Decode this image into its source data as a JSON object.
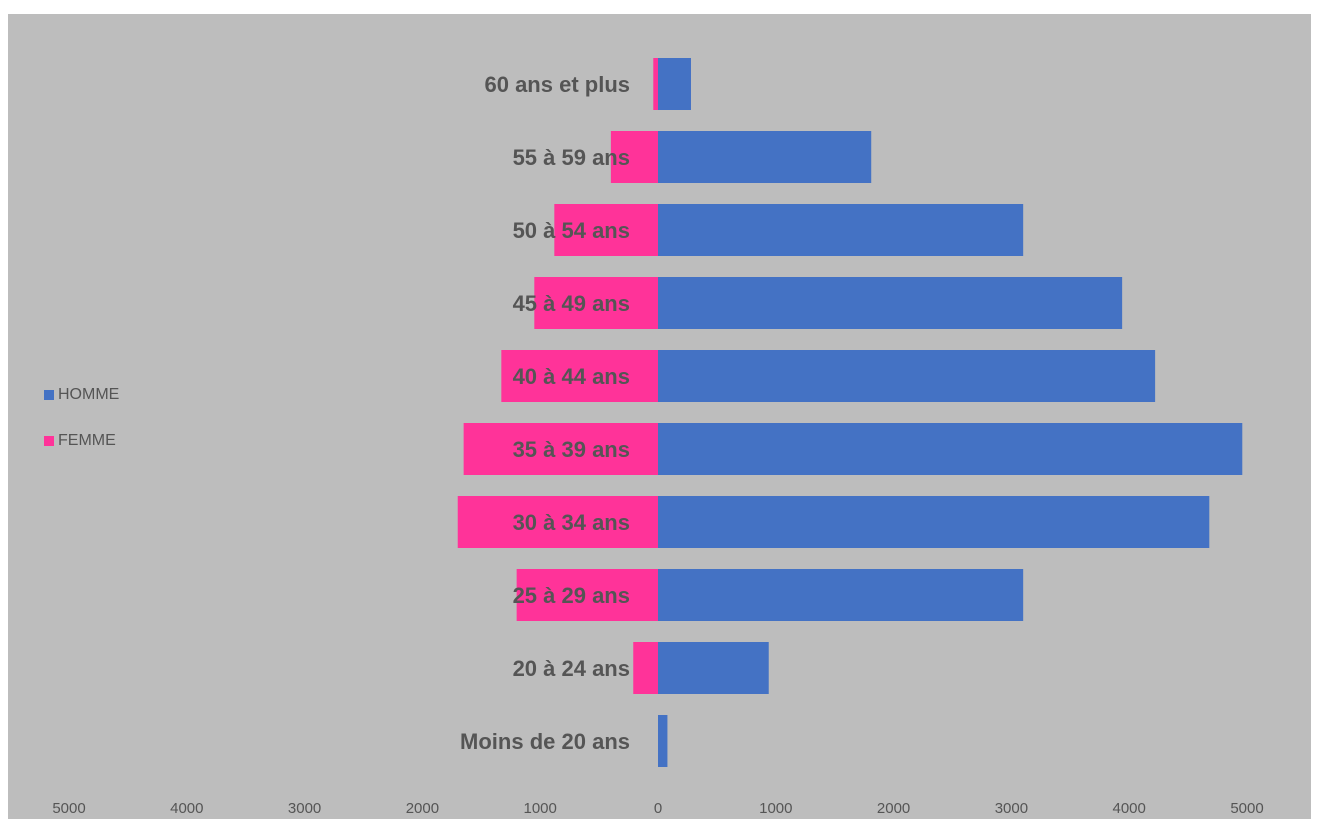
{
  "chart_data": {
    "type": "bar",
    "orientation": "horizontal",
    "layout": "population-pyramid",
    "categories": [
      "Moins de 20 ans",
      "20 à 24 ans",
      "25 à 29 ans",
      "30 à 34 ans",
      "35 à 39 ans",
      "40 à 44 ans",
      "45 à 49 ans",
      "50 à 54 ans",
      "55 à 59 ans",
      "60 ans et plus"
    ],
    "series": [
      {
        "name": "HOMME",
        "color": "#4472c4",
        "side": "right",
        "values": [
          80,
          940,
          3100,
          4680,
          4960,
          4220,
          3940,
          3100,
          1810,
          280
        ]
      },
      {
        "name": "FEMME",
        "color": "#ff3399",
        "side": "left",
        "values": [
          0,
          210,
          1200,
          1700,
          1650,
          1330,
          1050,
          880,
          400,
          40
        ]
      }
    ],
    "x_ticks": [
      "5000",
      "4000",
      "3000",
      "2000",
      "1000",
      "0",
      "1000",
      "2000",
      "3000",
      "4000",
      "5000"
    ],
    "xlim": [
      -5000,
      5000
    ],
    "grid": false,
    "legend_position": "left"
  }
}
